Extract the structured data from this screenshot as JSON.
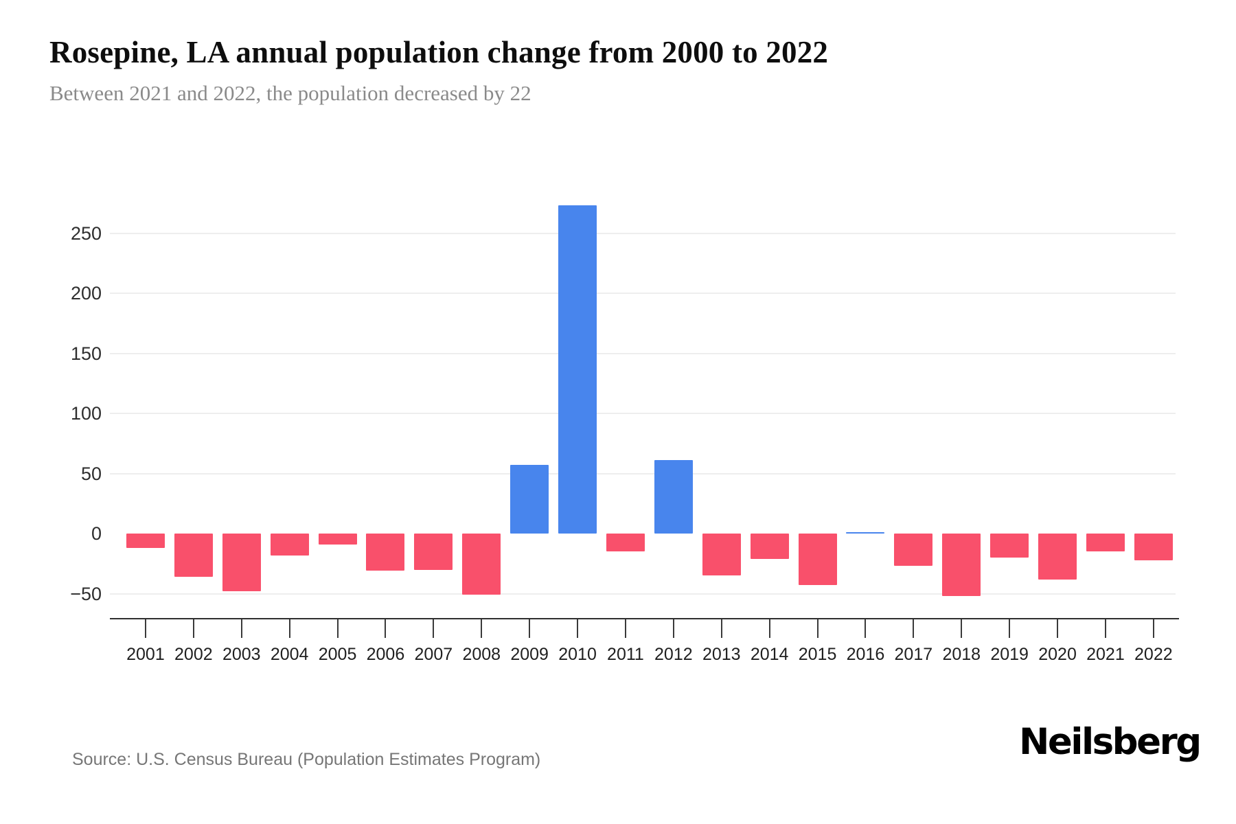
{
  "header": {
    "title": "Rosepine, LA annual population change from 2000 to 2022",
    "subtitle": "Between 2021 and 2022, the population decreased by 22"
  },
  "chart_data": {
    "type": "bar",
    "title": "Rosepine, LA annual population change from 2000 to 2022",
    "subtitle": "Between 2021 and 2022, the population decreased by 22",
    "categories": [
      "2001",
      "2002",
      "2003",
      "2004",
      "2005",
      "2006",
      "2007",
      "2008",
      "2009",
      "2010",
      "2011",
      "2012",
      "2013",
      "2014",
      "2015",
      "2016",
      "2017",
      "2018",
      "2019",
      "2020",
      "2021",
      "2022"
    ],
    "values": [
      -12,
      -36,
      -48,
      -18,
      -9,
      -31,
      -30,
      -51,
      57,
      273,
      -15,
      61,
      -35,
      -21,
      -43,
      1,
      -27,
      -52,
      -20,
      -38,
      -15,
      -22
    ],
    "xlabel": "",
    "ylabel": "",
    "ylim": [
      -60,
      285
    ],
    "yticks": [
      250,
      200,
      150,
      100,
      50,
      0,
      -50
    ],
    "gridline_values": [
      250,
      200,
      150,
      100,
      50,
      -50
    ],
    "grid": true,
    "legend": false,
    "positive_color": "#4885ed",
    "negative_color": "#f9506b"
  },
  "footer": {
    "source": "Source: U.S. Census Bureau (Population Estimates Program)",
    "brand": "Neilsberg"
  }
}
